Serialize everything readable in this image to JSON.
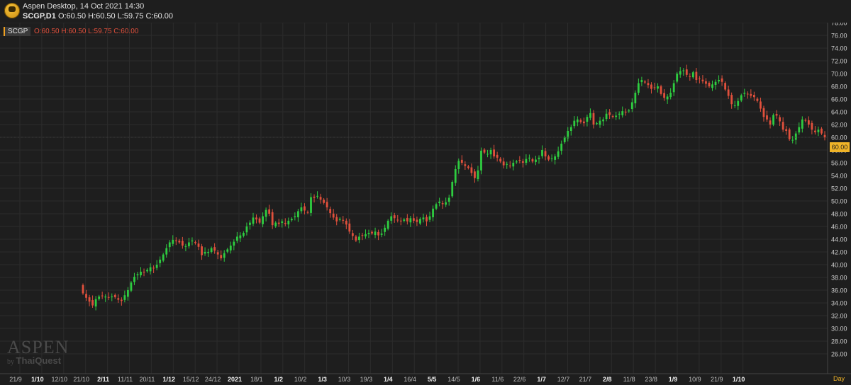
{
  "window": {
    "title": "Aspen Desktop, 14 Oct 2021 14:30",
    "ohlc_symbol": "SCGP,D1",
    "ohlc_values": "O:60.50 H:60.50 L:59.75 C:60.00"
  },
  "overlay": {
    "symbol": "SCGP",
    "ohlc": "O:60.50 H:60.50 L:59.75 C:60.00"
  },
  "watermark": {
    "brand": "ASPEN",
    "by": "by",
    "vendor": "ThaiQuest"
  },
  "last_price_label": "60.00",
  "period_label": "Day",
  "colors": {
    "up": "#2ecc40",
    "down": "#e0503c",
    "background": "#1e1e1e",
    "grid": "#2c2c2c",
    "accent": "#f0b428"
  },
  "chart_data": {
    "type": "candlestick",
    "symbol": "SCGP",
    "timeframe": "D1",
    "ylim": [
      25,
      79
    ],
    "yticks": [
      "26.00",
      "28.00",
      "30.00",
      "32.00",
      "34.00",
      "36.00",
      "38.00",
      "40.00",
      "42.00",
      "44.00",
      "46.00",
      "48.00",
      "50.00",
      "52.00",
      "54.00",
      "56.00",
      "58.00",
      "60.00",
      "62.00",
      "64.00",
      "66.00",
      "68.00",
      "70.00",
      "72.00",
      "74.00",
      "76.00",
      "78.00"
    ],
    "xticks": [
      {
        "label": "21/9",
        "bold": false
      },
      {
        "label": "1/10",
        "bold": true
      },
      {
        "label": "12/10",
        "bold": false
      },
      {
        "label": "21/10",
        "bold": false
      },
      {
        "label": "2/11",
        "bold": true
      },
      {
        "label": "11/11",
        "bold": false
      },
      {
        "label": "20/11",
        "bold": false
      },
      {
        "label": "1/12",
        "bold": true
      },
      {
        "label": "15/12",
        "bold": false
      },
      {
        "label": "24/12",
        "bold": false
      },
      {
        "label": "2021",
        "bold": true
      },
      {
        "label": "18/1",
        "bold": false
      },
      {
        "label": "1/2",
        "bold": true
      },
      {
        "label": "10/2",
        "bold": false
      },
      {
        "label": "1/3",
        "bold": true
      },
      {
        "label": "10/3",
        "bold": false
      },
      {
        "label": "19/3",
        "bold": false
      },
      {
        "label": "1/4",
        "bold": true
      },
      {
        "label": "16/4",
        "bold": false
      },
      {
        "label": "5/5",
        "bold": true
      },
      {
        "label": "14/5",
        "bold": false
      },
      {
        "label": "1/6",
        "bold": true
      },
      {
        "label": "11/6",
        "bold": false
      },
      {
        "label": "22/6",
        "bold": false
      },
      {
        "label": "1/7",
        "bold": true
      },
      {
        "label": "12/7",
        "bold": false
      },
      {
        "label": "21/7",
        "bold": false
      },
      {
        "label": "2/8",
        "bold": true
      },
      {
        "label": "11/8",
        "bold": false
      },
      {
        "label": "23/8",
        "bold": false
      },
      {
        "label": "1/9",
        "bold": true
      },
      {
        "label": "10/9",
        "bold": false
      },
      {
        "label": "21/9",
        "bold": false
      },
      {
        "label": "1/10",
        "bold": true
      }
    ],
    "closes": [
      35.5,
      34.8,
      34.2,
      33.6,
      34.6,
      35.0,
      35.1,
      35.0,
      34.8,
      35.0,
      34.9,
      34.5,
      34.3,
      35.2,
      36.0,
      37.2,
      38.1,
      38.5,
      38.9,
      38.8,
      39.2,
      39.6,
      39.4,
      40.0,
      40.8,
      41.6,
      42.6,
      43.5,
      43.9,
      43.7,
      43.5,
      43.0,
      42.9,
      43.5,
      43.8,
      43.4,
      42.8,
      41.5,
      42.0,
      42.0,
      42.6,
      42.2,
      41.6,
      41.0,
      41.8,
      42.4,
      43.0,
      43.6,
      44.4,
      44.6,
      45.0,
      46.0,
      46.6,
      47.4,
      47.1,
      46.6,
      47.6,
      48.6,
      48.0,
      46.2,
      46.6,
      46.4,
      46.8,
      46.4,
      46.9,
      47.2,
      47.6,
      48.4,
      49.0,
      48.5,
      48.2,
      50.6,
      50.5,
      50.8,
      50.2,
      49.7,
      49.0,
      48.1,
      47.4,
      46.8,
      47.2,
      46.9,
      46.3,
      45.2,
      44.5,
      43.8,
      44.4,
      44.6,
      44.8,
      45.0,
      44.9,
      45.2,
      44.6,
      44.9,
      45.8,
      46.9,
      47.6,
      47.3,
      47.0,
      46.8,
      47.1,
      46.8,
      47.3,
      46.9,
      46.7,
      47.2,
      47.4,
      46.8,
      47.6,
      48.8,
      49.5,
      49.9,
      49.5,
      49.8,
      50.5,
      53.0,
      55.0,
      56.3,
      56.0,
      55.5,
      55.2,
      54.4,
      53.6,
      54.8,
      57.9,
      57.6,
      57.4,
      58.0,
      57.0,
      56.8,
      56.2,
      55.6,
      55.8,
      55.5,
      56.0,
      56.2,
      56.4,
      56.0,
      56.6,
      56.8,
      56.2,
      56.5,
      56.8,
      58.0,
      57.0,
      56.5,
      56.7,
      57.0,
      57.8,
      59.0,
      60.0,
      61.0,
      61.6,
      62.6,
      62.8,
      62.4,
      62.2,
      63.2,
      63.8,
      62.0,
      62.2,
      62.6,
      62.8,
      63.7,
      63.5,
      63.2,
      63.4,
      63.7,
      64.1,
      64.0,
      64.2,
      65.5,
      67.0,
      68.5,
      69.0,
      68.6,
      68.2,
      67.6,
      67.8,
      68.0,
      66.8,
      66.2,
      66.4,
      67.0,
      68.5,
      70.0,
      70.4,
      70.5,
      69.8,
      69.5,
      70.2,
      69.0,
      69.2,
      68.8,
      68.4,
      68.0,
      68.3,
      68.7,
      69.0,
      68.7,
      67.5,
      66.5,
      65.2,
      65.0,
      65.7,
      66.6,
      67.0,
      66.8,
      66.5,
      66.3,
      65.7,
      64.5,
      63.2,
      62.8,
      62.0,
      63.5,
      63.4,
      62.5,
      61.2,
      61.0,
      59.7,
      59.6,
      60.6,
      61.6,
      62.8,
      62.6,
      62.0,
      61.2,
      60.8,
      61.2,
      60.6,
      60.0
    ]
  }
}
